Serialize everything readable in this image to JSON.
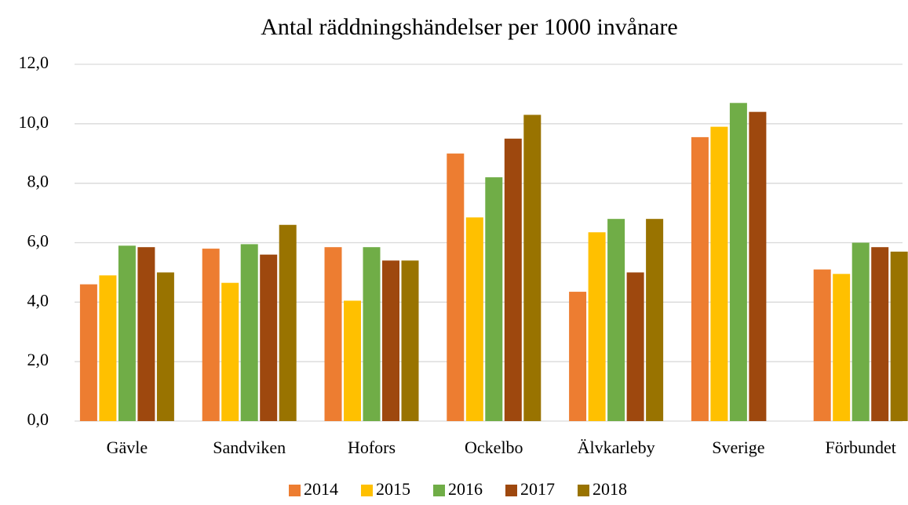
{
  "chart_data": {
    "type": "bar",
    "title": "Antal räddningshändelser per 1000 invånare",
    "categories": [
      "Gävle",
      "Sandviken",
      "Hofors",
      "Ockelbo",
      "Älvkarleby",
      "Sverige",
      "Förbundet"
    ],
    "series": [
      {
        "name": "2014",
        "color": "#ed7d31",
        "values": [
          4.6,
          5.8,
          5.85,
          9.0,
          4.35,
          9.55,
          5.1
        ]
      },
      {
        "name": "2015",
        "color": "#ffc000",
        "values": [
          4.9,
          4.65,
          4.05,
          6.85,
          6.35,
          9.9,
          4.95
        ]
      },
      {
        "name": "2016",
        "color": "#70ad47",
        "values": [
          5.9,
          5.95,
          5.85,
          8.2,
          6.8,
          10.7,
          6.0
        ]
      },
      {
        "name": "2017",
        "color": "#9e480e",
        "values": [
          5.85,
          5.6,
          5.4,
          9.5,
          5.0,
          10.4,
          5.85
        ]
      },
      {
        "name": "2018",
        "color": "#997300",
        "values": [
          5.0,
          6.6,
          5.4,
          10.3,
          6.8,
          null,
          5.7
        ]
      }
    ],
    "ylim": [
      0,
      12
    ],
    "yticks": [
      {
        "value": 0,
        "label": "0,0"
      },
      {
        "value": 2,
        "label": "2,0"
      },
      {
        "value": 4,
        "label": "4,0"
      },
      {
        "value": 6,
        "label": "6,0"
      },
      {
        "value": 8,
        "label": "8,0"
      },
      {
        "value": 10,
        "label": "10,0"
      },
      {
        "value": 12,
        "label": "12,0"
      }
    ],
    "grid": true,
    "legend": "bottom"
  }
}
